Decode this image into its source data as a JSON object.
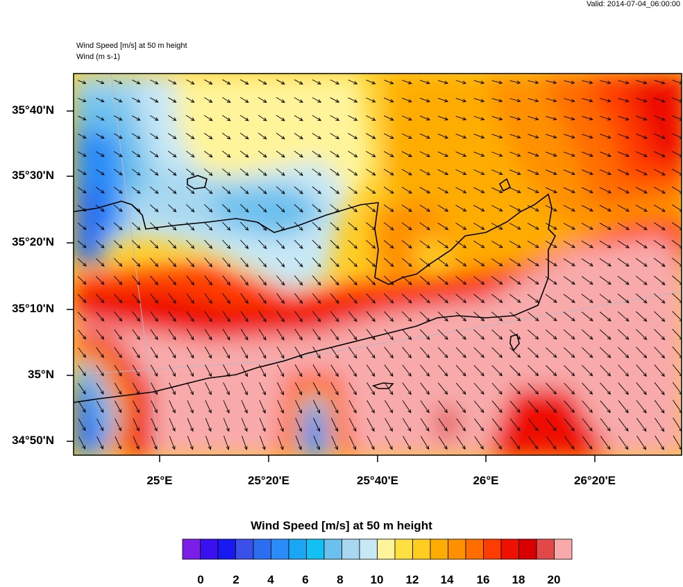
{
  "valid_time": "Valid: 2014-07-04_06:00:00",
  "header": {
    "line1": "Wind Speed [m/s] at 50 m height",
    "line2": "Wind   (m s-1)"
  },
  "axes": {
    "lat_ticks": [
      "35°40'N",
      "35°30'N",
      "35°20'N",
      "35°10'N",
      "35°N",
      "34°50'N"
    ],
    "lon_ticks": [
      "25°E",
      "25°20'E",
      "25°40'E",
      "26°E",
      "26°20'E"
    ]
  },
  "colorbar": {
    "title": "Wind Speed [m/s] at 50 m height",
    "tick_labels": [
      "0",
      "2",
      "4",
      "6",
      "8",
      "10",
      "12",
      "14",
      "16",
      "18",
      "20"
    ],
    "colors": [
      "#7a1ee8",
      "#3a10f0",
      "#1818f0",
      "#3a50e8",
      "#2c6ef0",
      "#2a8cf8",
      "#1aa6f4",
      "#12c0f4",
      "#6cc0ee",
      "#a8d8f0",
      "#c8e8f6",
      "#fff49a",
      "#ffe040",
      "#ffcc20",
      "#ffac00",
      "#ff9000",
      "#ff6c00",
      "#ff3c00",
      "#ee1000",
      "#d80000",
      "#e24848",
      "#f8aaaa"
    ]
  },
  "legend_colors": {
    "coast": "#000000",
    "graticule": "#b8b8c8"
  }
}
